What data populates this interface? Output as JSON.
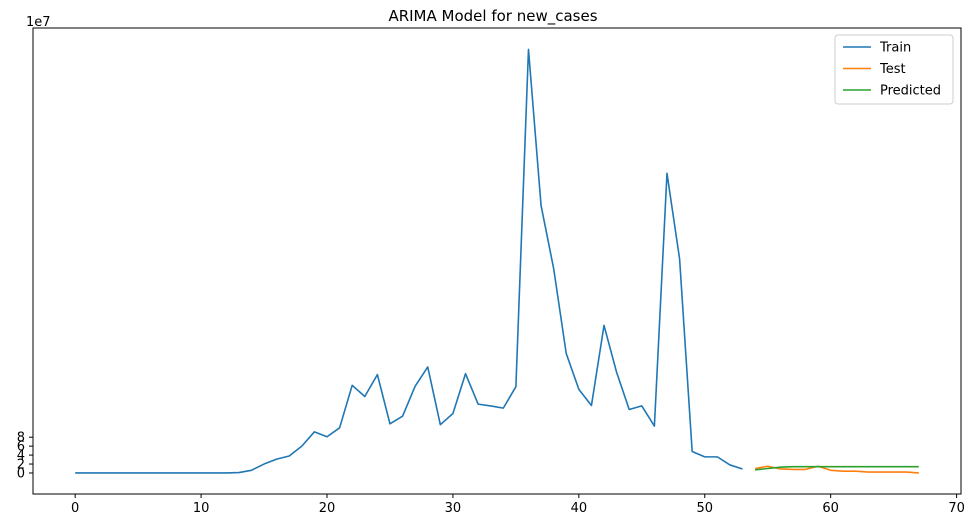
{
  "chart_data": {
    "type": "line",
    "title": "ARIMA Model for new_cases",
    "xlabel": "",
    "ylabel": "",
    "y_offset_text": "1e7",
    "xlim": [
      -3.35,
      70.35
    ],
    "ylim": [
      -4.7,
      99.5
    ],
    "x_ticks": [
      0,
      10,
      20,
      30,
      40,
      50,
      60,
      70
    ],
    "y_ticks": [
      0,
      2,
      4,
      6,
      8
    ],
    "grid": false,
    "legend_position": "top-right",
    "series": [
      {
        "name": "Train",
        "color": "#1f77b4",
        "x": [
          0,
          1,
          2,
          3,
          4,
          5,
          6,
          7,
          8,
          9,
          10,
          11,
          12,
          13,
          14,
          15,
          16,
          17,
          18,
          19,
          20,
          21,
          22,
          23,
          24,
          25,
          26,
          27,
          28,
          29,
          30,
          31,
          32,
          33,
          34,
          35,
          36,
          37,
          38,
          39,
          40,
          41,
          42,
          43,
          44,
          45,
          46,
          47,
          48,
          49,
          50,
          51,
          52,
          53
        ],
        "y": [
          0,
          0,
          0,
          0,
          0,
          0,
          0,
          0,
          0,
          0,
          0,
          0,
          0,
          0.1,
          0.6,
          2.0,
          3.1,
          3.8,
          6.0,
          9.2,
          8.1,
          10.1,
          19.6,
          17.1,
          22.0,
          11.0,
          12.7,
          19.4,
          23.7,
          10.8,
          13.3,
          22.2,
          15.4,
          15.0,
          14.5,
          19.3,
          94.7,
          59.8,
          45.7,
          26.7,
          18.7,
          15.1,
          33.0,
          22.5,
          14.2,
          15.0,
          10.5,
          67.0,
          47.9,
          4.8,
          3.6,
          3.6,
          1.8,
          0.9
        ]
      },
      {
        "name": "Test",
        "color": "#ff7f0e",
        "x": [
          54,
          55,
          56,
          57,
          58,
          59,
          60,
          61,
          62,
          63,
          64,
          65,
          66,
          67
        ],
        "y": [
          1.0,
          1.5,
          0.9,
          0.8,
          0.8,
          1.5,
          0.6,
          0.4,
          0.4,
          0.2,
          0.2,
          0.2,
          0.2,
          0.0
        ]
      },
      {
        "name": "Predicted",
        "color": "#2ca02c",
        "x": [
          54,
          55,
          56,
          57,
          58,
          59,
          60,
          61,
          62,
          63,
          64,
          65,
          66,
          67
        ],
        "y": [
          0.7,
          1.0,
          1.3,
          1.4,
          1.4,
          1.4,
          1.4,
          1.4,
          1.4,
          1.4,
          1.4,
          1.4,
          1.4,
          1.4
        ]
      }
    ]
  }
}
